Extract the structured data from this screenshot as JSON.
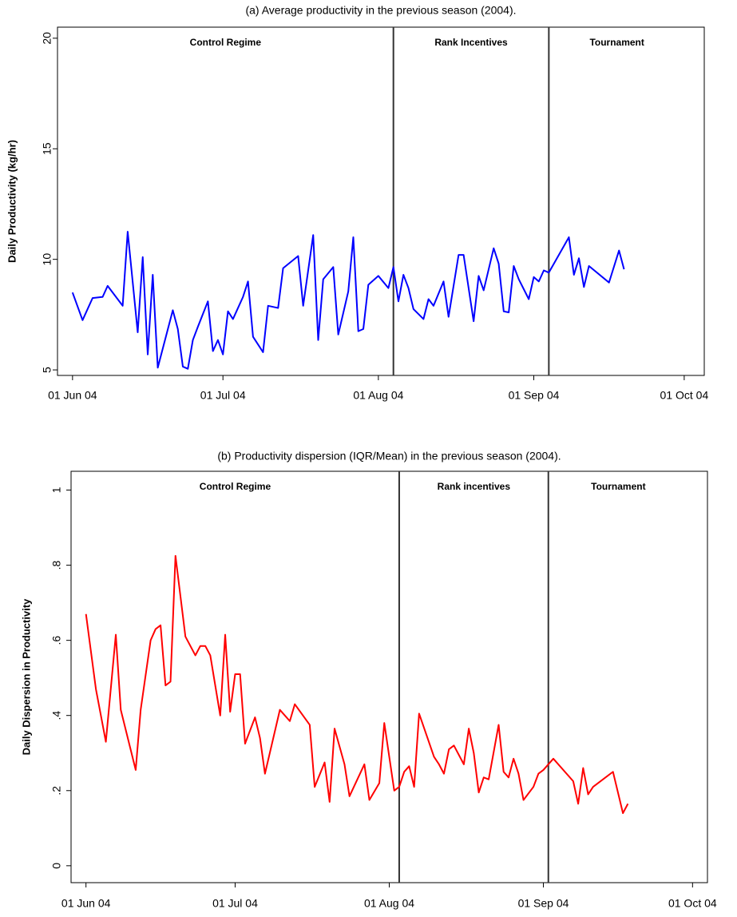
{
  "chart_data": [
    {
      "type": "line",
      "title": "(a) Average productivity in the previous season (2004).",
      "y_label": "Daily Productivity (kg/hr)",
      "color": "#0000ff",
      "annotations": [
        "Control Regime",
        "Rank Incentives",
        "Tournament"
      ],
      "regime_changes": [
        "2004-08-04",
        "2004-09-04"
      ],
      "xlim": [
        "2004-05-29",
        "2004-10-05"
      ],
      "xticks": [
        {
          "value": "2004-06-01",
          "label": "01 Jun 04"
        },
        {
          "value": "2004-07-01",
          "label": "01 Jul 04"
        },
        {
          "value": "2004-08-01",
          "label": "01 Aug 04"
        },
        {
          "value": "2004-09-01",
          "label": "01 Sep 04"
        },
        {
          "value": "2004-10-01",
          "label": "01 Oct 04"
        }
      ],
      "ylim": [
        4.75,
        20.5
      ],
      "yticks": [
        5,
        10,
        15,
        20
      ],
      "x": [
        "2004-06-01",
        "2004-06-03",
        "2004-06-05",
        "2004-06-07",
        "2004-06-08",
        "2004-06-11",
        "2004-06-12",
        "2004-06-14",
        "2004-06-15",
        "2004-06-16",
        "2004-06-17",
        "2004-06-18",
        "2004-06-21",
        "2004-06-22",
        "2004-06-23",
        "2004-06-24",
        "2004-06-25",
        "2004-06-26",
        "2004-06-28",
        "2004-06-29",
        "2004-06-30",
        "2004-07-01",
        "2004-07-02",
        "2004-07-03",
        "2004-07-05",
        "2004-07-06",
        "2004-07-07",
        "2004-07-09",
        "2004-07-10",
        "2004-07-12",
        "2004-07-13",
        "2004-07-16",
        "2004-07-17",
        "2004-07-19",
        "2004-07-20",
        "2004-07-21",
        "2004-07-23",
        "2004-07-24",
        "2004-07-26",
        "2004-07-27",
        "2004-07-28",
        "2004-07-29",
        "2004-07-30",
        "2004-08-01",
        "2004-08-03",
        "2004-08-04",
        "2004-08-05",
        "2004-08-06",
        "2004-08-07",
        "2004-08-08",
        "2004-08-10",
        "2004-08-11",
        "2004-08-12",
        "2004-08-14",
        "2004-08-15",
        "2004-08-17",
        "2004-08-18",
        "2004-08-20",
        "2004-08-21",
        "2004-08-22",
        "2004-08-24",
        "2004-08-25",
        "2004-08-26",
        "2004-08-27",
        "2004-08-28",
        "2004-08-29",
        "2004-08-31",
        "2004-09-01",
        "2004-09-02",
        "2004-09-03",
        "2004-09-04",
        "2004-09-08",
        "2004-09-09",
        "2004-09-10",
        "2004-09-11",
        "2004-09-12",
        "2004-09-16",
        "2004-09-18",
        "2004-09-19"
      ],
      "values": [
        8.5,
        7.25,
        8.25,
        8.3,
        8.8,
        7.9,
        11.25,
        6.7,
        10.1,
        5.7,
        9.3,
        5.1,
        7.7,
        6.85,
        5.15,
        5.05,
        6.35,
        6.95,
        8.1,
        5.85,
        6.35,
        5.7,
        7.65,
        7.3,
        8.3,
        9.0,
        6.5,
        5.8,
        7.9,
        7.8,
        9.6,
        10.15,
        7.9,
        11.1,
        6.35,
        9.1,
        9.65,
        6.6,
        8.55,
        11.0,
        6.75,
        6.85,
        8.85,
        9.25,
        8.7,
        9.65,
        8.1,
        9.3,
        8.7,
        7.75,
        7.3,
        8.2,
        7.9,
        9.0,
        7.4,
        10.2,
        10.2,
        7.2,
        9.25,
        8.6,
        10.5,
        9.8,
        7.65,
        7.6,
        9.7,
        9.1,
        8.2,
        9.2,
        9.0,
        9.5,
        9.4,
        11.0,
        9.3,
        10.05,
        8.75,
        9.7,
        8.95,
        10.4,
        9.55
      ]
    },
    {
      "type": "line",
      "title": "(b) Productivity dispersion (IQR/Mean) in the previous season (2004).",
      "y_label": "Daily Dispersion in Productivity",
      "color": "#ff0000",
      "annotations": [
        "Control Regime",
        "Rank incentives",
        "Tournament"
      ],
      "regime_changes": [
        "2004-08-03",
        "2004-09-02"
      ],
      "xlim": [
        "2004-05-29",
        "2004-10-04"
      ],
      "xticks": [
        {
          "value": "2004-06-01",
          "label": "01 Jun 04"
        },
        {
          "value": "2004-07-01",
          "label": "01 Jul 04"
        },
        {
          "value": "2004-08-01",
          "label": "01 Aug 04"
        },
        {
          "value": "2004-09-01",
          "label": "01 Sep 04"
        },
        {
          "value": "2004-10-01",
          "label": "01 Oct 04"
        }
      ],
      "ylim": [
        -0.045,
        1.05
      ],
      "yticks": [
        0,
        {
          "value": 0.2,
          "label": ".2"
        },
        {
          "value": 0.4,
          "label": ".4"
        },
        {
          "value": 0.6,
          "label": ".6"
        },
        {
          "value": 0.8,
          "label": ".8"
        },
        1
      ],
      "x": [
        "2004-06-01",
        "2004-06-03",
        "2004-06-05",
        "2004-06-07",
        "2004-06-08",
        "2004-06-11",
        "2004-06-12",
        "2004-06-14",
        "2004-06-15",
        "2004-06-16",
        "2004-06-17",
        "2004-06-18",
        "2004-06-19",
        "2004-06-21",
        "2004-06-22",
        "2004-06-23",
        "2004-06-24",
        "2004-06-25",
        "2004-06-26",
        "2004-06-28",
        "2004-06-29",
        "2004-06-30",
        "2004-07-01",
        "2004-07-02",
        "2004-07-03",
        "2004-07-05",
        "2004-07-06",
        "2004-07-07",
        "2004-07-10",
        "2004-07-12",
        "2004-07-13",
        "2004-07-16",
        "2004-07-17",
        "2004-07-19",
        "2004-07-20",
        "2004-07-21",
        "2004-07-23",
        "2004-07-24",
        "2004-07-27",
        "2004-07-28",
        "2004-07-30",
        "2004-07-31",
        "2004-08-02",
        "2004-08-03",
        "2004-08-04",
        "2004-08-05",
        "2004-08-06",
        "2004-08-07",
        "2004-08-10",
        "2004-08-11",
        "2004-08-12",
        "2004-08-13",
        "2004-08-14",
        "2004-08-16",
        "2004-08-17",
        "2004-08-18",
        "2004-08-19",
        "2004-08-20",
        "2004-08-21",
        "2004-08-23",
        "2004-08-24",
        "2004-08-25",
        "2004-08-26",
        "2004-08-27",
        "2004-08-28",
        "2004-08-30",
        "2004-08-31",
        "2004-09-01",
        "2004-09-03",
        "2004-09-07",
        "2004-09-08",
        "2004-09-09",
        "2004-09-10",
        "2004-09-11",
        "2004-09-15",
        "2004-09-17",
        "2004-09-18"
      ],
      "values": [
        0.67,
        0.47,
        0.33,
        0.615,
        0.415,
        0.255,
        0.415,
        0.6,
        0.63,
        0.64,
        0.48,
        0.49,
        0.825,
        0.61,
        0.585,
        0.56,
        0.585,
        0.585,
        0.56,
        0.4,
        0.615,
        0.41,
        0.51,
        0.51,
        0.325,
        0.395,
        0.34,
        0.245,
        0.415,
        0.385,
        0.43,
        0.375,
        0.21,
        0.275,
        0.17,
        0.365,
        0.27,
        0.185,
        0.27,
        0.175,
        0.22,
        0.38,
        0.2,
        0.21,
        0.25,
        0.265,
        0.21,
        0.405,
        0.29,
        0.27,
        0.245,
        0.31,
        0.32,
        0.27,
        0.365,
        0.3,
        0.195,
        0.235,
        0.23,
        0.375,
        0.25,
        0.235,
        0.285,
        0.245,
        0.175,
        0.21,
        0.245,
        0.255,
        0.285,
        0.225,
        0.165,
        0.26,
        0.19,
        0.21,
        0.25,
        0.14,
        0.165
      ]
    }
  ]
}
